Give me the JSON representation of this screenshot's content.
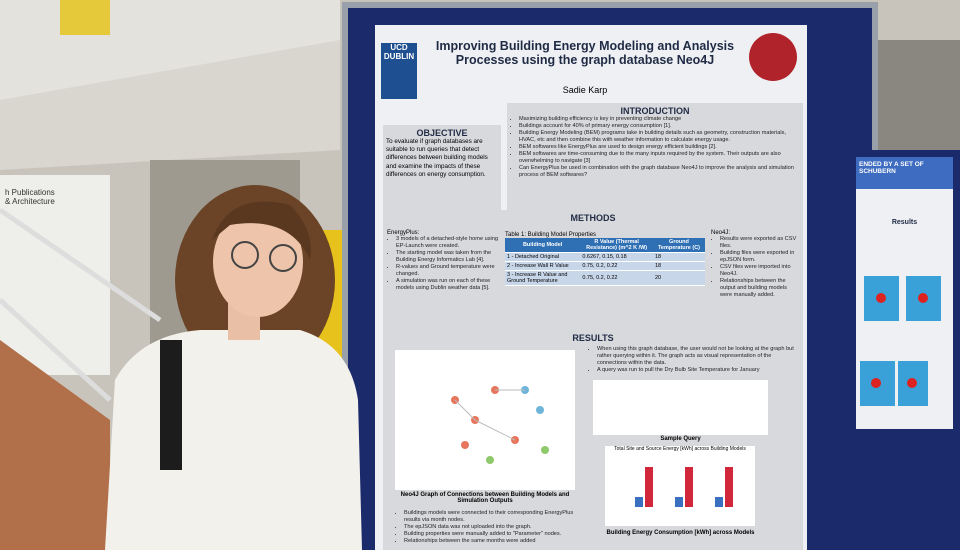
{
  "signage": {
    "line1": "h Publications",
    "line2": "& Architecture"
  },
  "poster": {
    "logo": "UCD DUBLIN",
    "title": "Improving Building Energy Modeling and Analysis Processes using the graph database Neo4J",
    "author": "Sadie Karp",
    "objective": {
      "heading": "OBJECTIVE",
      "text": "To evaluate if graph databases are suitable to run queries that detect differences between building models and examine the impacts of these differences on energy consumption."
    },
    "introduction": {
      "heading": "INTRODUCTION",
      "bullets": [
        "Maximizing building efficiency is key in preventing climate change",
        "Buildings account for 40% of primary energy consumption [1].",
        "Building Energy Modeling (BEM) programs take in building details such as geometry, construction materials, HVAC, etc and then combine this with weather information to calculate energy usage.",
        "BEM softwares like EnergyPlus are used to design energy efficient buildings [2].",
        "BEM softwares are time-consuming due to the many inputs required by the system. Their outputs are also overwhelming to navigate [3]",
        "Can EnergyPlus be used in combination with the graph database Neo4J to improve the analysis and simulation process of BEM softwares?"
      ]
    },
    "methods": {
      "heading": "METHODS",
      "energyplus_label": "EnergyPlus:",
      "energyplus_bullets": [
        "3 models of a detached-style home using EP-Launch were created.",
        "The starting model was taken from the Building Energy Informatics Lab [4].",
        "R-values and Ground temperature were changed.",
        "A simulation was run on each of these models using Dublin weather data [5]."
      ],
      "table": {
        "caption": "Table 1: Building Model Properties",
        "header": [
          "Building Model",
          "R Value (Thermal Resistance) (m^2 K /W)",
          "Ground Temperature (C)"
        ],
        "rows": [
          [
            "1 - Detached Original",
            "0.6267, 0.15, 0.18",
            "18"
          ],
          [
            "2 - Increase Wall R Value",
            "0.75, 0.2, 0.22",
            "18"
          ],
          [
            "3 - Increase R Value and Ground Temperature",
            "0.75, 0.2, 0.22",
            "20"
          ]
        ]
      },
      "neo4j_label": "Neo4J:",
      "neo4j_bullets": [
        "Results were exported as CSV files.",
        "Building files were exported in epJSON form.",
        "CSV files were imported into Neo4J.",
        "Relationships between the output and building models were manually added."
      ]
    },
    "results": {
      "heading": "RESULTS",
      "bullets": [
        "When using this graph database, the user would not be looking at the graph but rather querying within it. The graph acts as visual representation of the connections within the data.",
        "A query was run to pull the Dry Bulb Site Temperature for January"
      ],
      "graph_caption": "Neo4J Graph of Connections between Building Models and Simulation Outputs",
      "graph_bullets": [
        "Buildings models were connected to their corresponding EnergyPlus results via month nodes.",
        "The epJSON data was not uploaded into the graph.",
        "Building properties were manually added to \"Parameter\" nodes.",
        "Relationships between the same months were added"
      ],
      "query_caption": "Sample Query",
      "chart_title": "Total Site and Source Energy [kWh] across Building Models",
      "chart_caption": "Building Energy Consumption [kWh] across Models"
    }
  },
  "side_poster": {
    "title_line1": "ENDED BY A SET OF",
    "title_line2": "SCHUBERN",
    "heading": "Results"
  }
}
